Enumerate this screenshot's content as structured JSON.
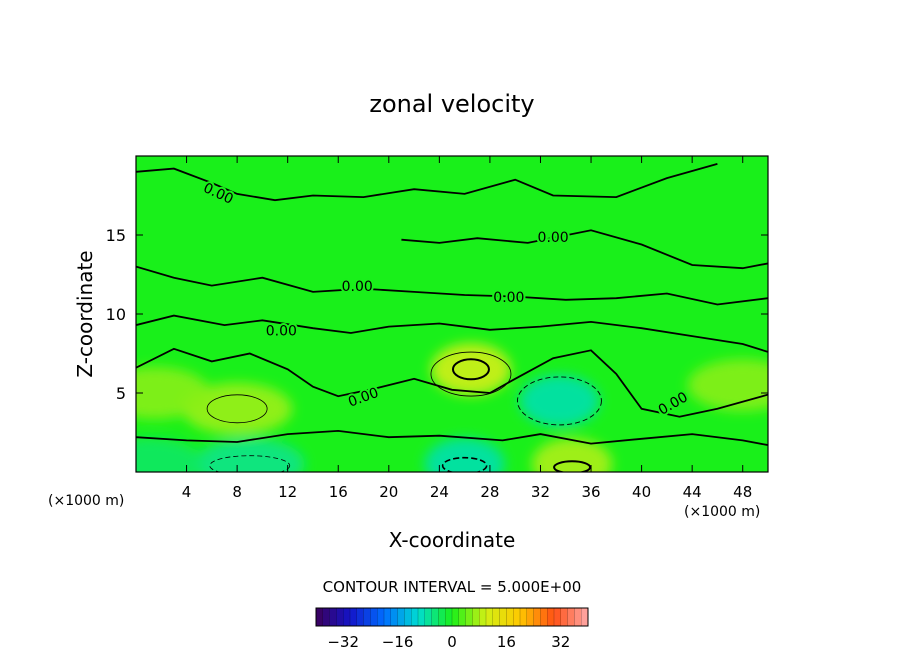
{
  "chart_data": {
    "type": "contour",
    "title": "zonal velocity",
    "xlabel": "X-coordinate",
    "ylabel": "Z-coordinate",
    "x_unit": "(×1000 m)",
    "xlim": [
      0,
      50
    ],
    "ylim": [
      0,
      20
    ],
    "x_ticks": [
      4,
      8,
      12,
      16,
      20,
      24,
      28,
      32,
      36,
      40,
      44,
      48
    ],
    "y_ticks": [
      5,
      10,
      15
    ],
    "contour_interval_text": "CONTOUR INTERVAL = 5.000E+00",
    "contour_label": "0.00",
    "colorbar": {
      "min": -40,
      "max": 40,
      "ticks": [
        -32,
        -16,
        0,
        16,
        32
      ],
      "tick_labels": [
        "−32",
        "−16",
        "0",
        "16",
        "32"
      ]
    },
    "field_features": [
      {
        "x": 26.5,
        "z": 6.5,
        "value": 10
      },
      {
        "x": 34.5,
        "z": 0.5,
        "value": 8
      },
      {
        "x": 8.0,
        "z": 4.0,
        "value": 7
      },
      {
        "x": 1.5,
        "z": 5.0,
        "value": 6
      },
      {
        "x": 48.0,
        "z": 5.5,
        "value": 6
      },
      {
        "x": 33.5,
        "z": 4.5,
        "value": -8
      },
      {
        "x": 9.0,
        "z": 0.5,
        "value": -6
      },
      {
        "x": 26.0,
        "z": 0.5,
        "value": -8
      },
      {
        "x": 1.0,
        "z": 0.5,
        "value": -4
      }
    ],
    "grid": false
  }
}
